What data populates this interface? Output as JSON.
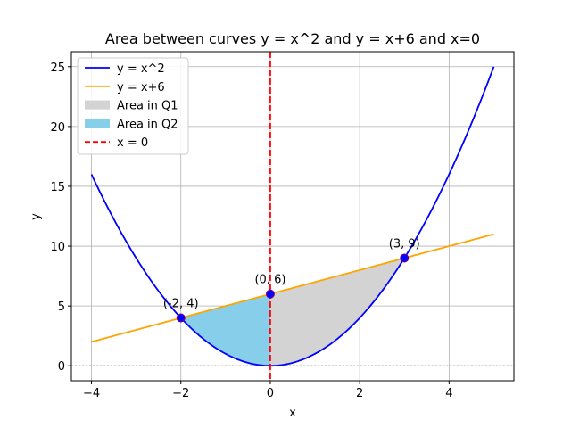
{
  "chart_data": {
    "type": "line",
    "title": "Area between curves y = x^2 and y = x+6 and x=0",
    "xlabel": "x",
    "ylabel": "y",
    "xlim": [
      -4.45,
      5.45
    ],
    "ylim": [
      -1.25,
      26.25
    ],
    "xticks": [
      -4,
      -2,
      0,
      2,
      4
    ],
    "yticks": [
      0,
      5,
      10,
      15,
      20,
      25
    ],
    "grid": true,
    "legend_position": "upper-left",
    "series": [
      {
        "name": "y = x^2",
        "function": "x^2",
        "x_range": [
          -4,
          5
        ],
        "color": "#0000ff"
      },
      {
        "name": "y = x+6",
        "function": "x+6",
        "x_range": [
          -4,
          5
        ],
        "color": "#ffa500"
      }
    ],
    "areas": [
      {
        "name": "Area in Q1",
        "x_range": [
          0,
          3
        ],
        "color": "#d3d3d3"
      },
      {
        "name": "Area in Q2",
        "x_range": [
          -2,
          0
        ],
        "color": "#87ceeb"
      }
    ],
    "vline": {
      "name": "x = 0",
      "x": 0,
      "color": "#ff0000"
    },
    "hline": {
      "y": 0
    },
    "points": [
      {
        "x": -2,
        "y": 4,
        "label": "(-2, 4)"
      },
      {
        "x": 0,
        "y": 6,
        "label": "(0, 6)"
      },
      {
        "x": 3,
        "y": 9,
        "label": "(3, 9)"
      }
    ]
  }
}
